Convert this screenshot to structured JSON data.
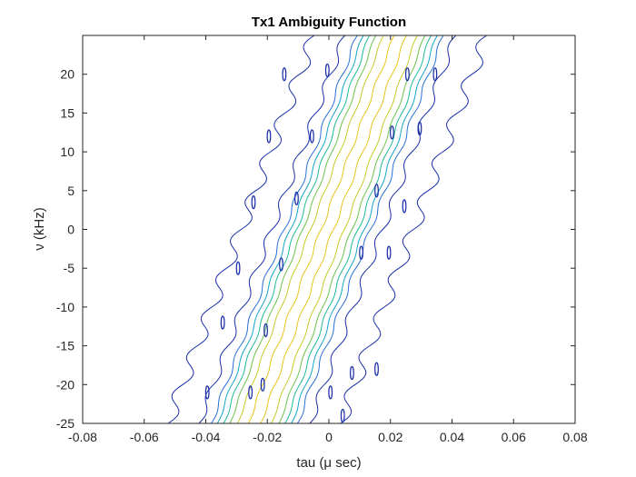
{
  "chart_data": {
    "type": "contour",
    "title": "Tx1 Ambiguity Function",
    "xlabel": "tau (μ sec)",
    "ylabel": "ν (kHz)",
    "xlim": [
      -0.08,
      0.08
    ],
    "ylim": [
      -25,
      25
    ],
    "xticks": [
      -0.08,
      -0.06,
      -0.04,
      -0.02,
      0,
      0.02,
      0.04,
      0.06,
      0.08
    ],
    "xtick_labels": [
      "-0.08",
      "-0.06",
      "-0.04",
      "-0.02",
      "0",
      "0.02",
      "0.04",
      "0.06",
      "0.08"
    ],
    "yticks": [
      -25,
      -20,
      -15,
      -10,
      -5,
      0,
      5,
      10,
      15,
      20
    ],
    "ytick_labels": [
      "-25",
      "-20",
      "-15",
      "-10",
      "-5",
      "0",
      "5",
      "10",
      "15",
      "20"
    ],
    "box": true,
    "grid": false,
    "ridge_slope_tau_per_khz": 0.00095,
    "ripple_period_khz": 5,
    "contours": [
      {
        "color": "#1a2ea8",
        "tau_offset": -0.0285,
        "ripple": 0.0022
      },
      {
        "color": "#1a2ea8",
        "tau_offset": -0.0185,
        "ripple": 0.0012
      },
      {
        "color": "#1a2ea8",
        "tau_offset": 0.0175,
        "ripple": 0.0012
      },
      {
        "color": "#1a2ea8",
        "tau_offset": 0.0275,
        "ripple": 0.0022
      },
      {
        "color": "#2a6fd6",
        "tau_offset": -0.0145,
        "ripple": 0.0006
      },
      {
        "color": "#2a6fd6",
        "tau_offset": 0.0135,
        "ripple": 0.0006
      },
      {
        "color": "#14a4c9",
        "tau_offset": -0.0125,
        "ripple": 0.0004
      },
      {
        "color": "#14a4c9",
        "tau_offset": 0.0115,
        "ripple": 0.0004
      },
      {
        "color": "#1fb896",
        "tau_offset": -0.0105,
        "ripple": 0.0004
      },
      {
        "color": "#1fb896",
        "tau_offset": 0.0095,
        "ripple": 0.0004
      },
      {
        "color": "#6cc24a",
        "tau_offset": -0.0085,
        "ripple": 0.0003
      },
      {
        "color": "#6cc24a",
        "tau_offset": 0.0075,
        "ripple": 0.0003
      },
      {
        "color": "#c8c92a",
        "tau_offset": -0.006,
        "ripple": 0.0003
      },
      {
        "color": "#c8c92a",
        "tau_offset": 0.005,
        "ripple": 0.0003
      },
      {
        "color": "#e8c31e",
        "tau_offset": -0.0025,
        "ripple": 0.0004
      },
      {
        "color": "#e8c31e",
        "tau_offset": 0.0015,
        "ripple": 0.0004
      }
    ],
    "islands": {
      "color": "#1a2ea8",
      "points": [
        {
          "tau": -0.0395,
          "nu": -21
        },
        {
          "tau": -0.0255,
          "nu": -21
        },
        {
          "tau": -0.0215,
          "nu": -20
        },
        {
          "tau": 0.0005,
          "nu": -21
        },
        {
          "tau": 0.0045,
          "nu": -24
        },
        {
          "tau": 0.0075,
          "nu": -18.5
        },
        {
          "tau": -0.0345,
          "nu": -12
        },
        {
          "tau": -0.0205,
          "nu": -13
        },
        {
          "tau": 0.0155,
          "nu": -18
        },
        {
          "tau": -0.0295,
          "nu": -5
        },
        {
          "tau": -0.0155,
          "nu": -4.5
        },
        {
          "tau": 0.0105,
          "nu": -3
        },
        {
          "tau": 0.0195,
          "nu": -3
        },
        {
          "tau": -0.0245,
          "nu": 3.5
        },
        {
          "tau": -0.0105,
          "nu": 4
        },
        {
          "tau": 0.0155,
          "nu": 5
        },
        {
          "tau": 0.0245,
          "nu": 3
        },
        {
          "tau": -0.0195,
          "nu": 12
        },
        {
          "tau": -0.0055,
          "nu": 12
        },
        {
          "tau": 0.0205,
          "nu": 12.5
        },
        {
          "tau": 0.0295,
          "nu": 13
        },
        {
          "tau": -0.0145,
          "nu": 20
        },
        {
          "tau": -0.0005,
          "nu": 20.5
        },
        {
          "tau": 0.0255,
          "nu": 20
        },
        {
          "tau": 0.0345,
          "nu": 20
        }
      ]
    }
  }
}
